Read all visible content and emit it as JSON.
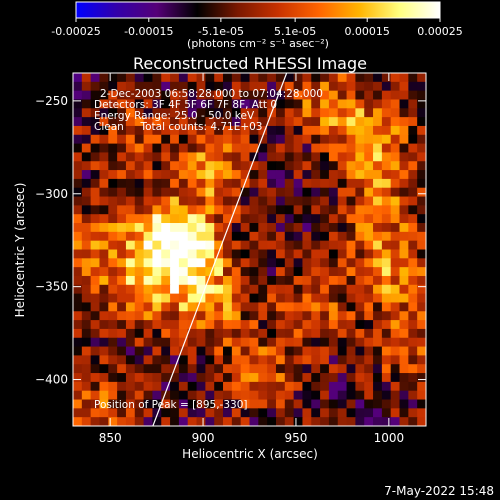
{
  "chart_data": {
    "type": "heatmap",
    "title": "Reconstructed RHESSI Image",
    "xlabel": "Heliocentric X (arcsec)",
    "ylabel": "Heliocentric Y (arcsec)",
    "xlim": [
      830,
      1020
    ],
    "ylim": [
      -425,
      -235
    ],
    "x_ticks": [
      850,
      900,
      950,
      1000
    ],
    "y_ticks": [
      -250,
      -300,
      -350,
      -400
    ],
    "colorbar": {
      "range": [
        -0.00025,
        0.00025
      ],
      "tick_values": [
        -0.00025,
        -0.00015,
        -5.1e-05,
        5.1e-05,
        0.00015,
        0.00025
      ],
      "tick_labels": [
        "-0.00025",
        "-0.00015",
        "-5.1e-05",
        "5.1e-05",
        "0.00015",
        "0.00025"
      ],
      "unit": "(photons cm⁻² s⁻¹ asec⁻²)"
    },
    "info_lines": [
      "2-Dec-2003 06:58:28.000 to 07:04:28.000",
      "Detectors: 3F 4F 5F 6F 7F 8F, Att 0",
      "Energy Range: 25.0 - 50.0 keV",
      "Clean     Total counts: 4.71E+03"
    ],
    "peak_label": "Position of Peak = [895,-330]",
    "peak_position": [
      895,
      -330
    ],
    "limb_line": {
      "x": [
        873,
        945
      ],
      "y": [
        -425,
        -235
      ],
      "color": "#ffffff"
    },
    "grid_nx": 40,
    "grid_ny": 40,
    "bright_sources": [
      {
        "x": 893,
        "y": -333,
        "peak": 0.00025
      },
      {
        "x": 877,
        "y": -320,
        "peak": 0.00019
      },
      {
        "x": 868,
        "y": -352,
        "peak": 0.00018
      },
      {
        "x": 905,
        "y": -288,
        "peak": 0.00016
      },
      {
        "x": 905,
        "y": -360,
        "peak": 0.00014
      },
      {
        "x": 840,
        "y": -330,
        "peak": 0.00013
      },
      {
        "x": 990,
        "y": -270,
        "peak": 0.00018
      },
      {
        "x": 995,
        "y": -305,
        "peak": 0.00014
      },
      {
        "x": 1000,
        "y": -340,
        "peak": 0.00017
      },
      {
        "x": 965,
        "y": -250,
        "peak": 0.00012
      },
      {
        "x": 1010,
        "y": -380,
        "peak": 0.00013
      },
      {
        "x": 930,
        "y": -395,
        "peak": 0.00012
      },
      {
        "x": 960,
        "y": -360,
        "peak": 0.00011
      },
      {
        "x": 860,
        "y": -270,
        "peak": 0.0001
      },
      {
        "x": 840,
        "y": -415,
        "peak": 0.00012
      }
    ]
  },
  "footer": {
    "timestamp": "7-May-2022 15:48"
  },
  "colors": {
    "background": "#000000",
    "foreground": "#ffffff",
    "colormap": [
      "#0000ff",
      "#3200aa",
      "#550078",
      "#000000",
      "#7a1800",
      "#c83200",
      "#ff6400",
      "#ffb400",
      "#ffff80",
      "#ffffff"
    ]
  }
}
